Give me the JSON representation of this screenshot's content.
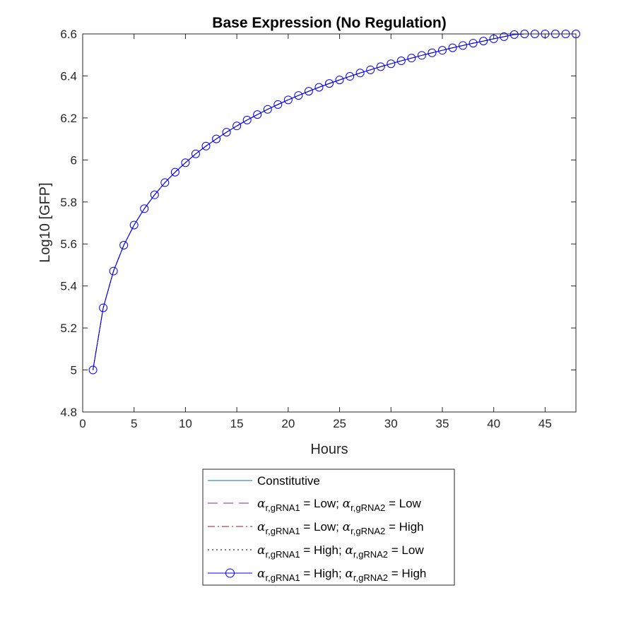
{
  "chart_data": {
    "type": "line",
    "title": "Base Expression (No Regulation)",
    "xlabel": "Hours",
    "ylabel": "Log10 [GFP]",
    "xlim": [
      0,
      48
    ],
    "ylim": [
      4.8,
      6.6
    ],
    "xticks": [
      0,
      5,
      10,
      15,
      20,
      25,
      30,
      35,
      40,
      45
    ],
    "xtick_labels": [
      "0",
      "5",
      "10",
      "15",
      "20",
      "25",
      "30",
      "35",
      "40",
      "45"
    ],
    "yticks": [
      4.8,
      5,
      5.2,
      5.4,
      5.6,
      5.8,
      6,
      6.2,
      6.4,
      6.6
    ],
    "ytick_labels": [
      "4.8",
      "5",
      "5.2",
      "5.4",
      "5.6",
      "5.8",
      "6",
      "6.2",
      "6.4",
      "6.6"
    ],
    "grid": false,
    "legend_position": "bottom-outside",
    "x": [
      1,
      2,
      3,
      4,
      5,
      6,
      7,
      8,
      9,
      10,
      11,
      12,
      13,
      14,
      15,
      16,
      17,
      18,
      19,
      20,
      21,
      22,
      23,
      24,
      25,
      26,
      27,
      28,
      29,
      30,
      31,
      32,
      33,
      34,
      35,
      36,
      37,
      38,
      39,
      40,
      41,
      42,
      43,
      44,
      45,
      46,
      47,
      48
    ],
    "series": [
      {
        "name": "Constitutive",
        "color": "#0072BD",
        "style": "solid",
        "marker": "none",
        "values": [
          5.0,
          5.296,
          5.471,
          5.594,
          5.69,
          5.768,
          5.834,
          5.892,
          5.942,
          5.987,
          6.029,
          6.066,
          6.1,
          6.132,
          6.162,
          6.19,
          6.216,
          6.241,
          6.264,
          6.286,
          6.307,
          6.327,
          6.346,
          6.364,
          6.381,
          6.398,
          6.414,
          6.429,
          6.444,
          6.458,
          6.472,
          6.485,
          6.498,
          6.51,
          6.522,
          6.534,
          6.545,
          6.556,
          6.566,
          6.577,
          6.587,
          6.597,
          6.606,
          6.615,
          6.624,
          6.633,
          6.642,
          6.65
        ]
      },
      {
        "name_parts": {
          "a": "r,gRNA1",
          "b": " = Low; ",
          "c": "r,gRNA2",
          "d": " = Low"
        },
        "color": "#7E2F8E",
        "style": "dashed",
        "marker": "none",
        "values": [
          5.0,
          5.296,
          5.471,
          5.594,
          5.69,
          5.768,
          5.834,
          5.892,
          5.942,
          5.987,
          6.029,
          6.066,
          6.1,
          6.132,
          6.162,
          6.19,
          6.216,
          6.241,
          6.264,
          6.286,
          6.307,
          6.327,
          6.346,
          6.364,
          6.381,
          6.398,
          6.414,
          6.429,
          6.444,
          6.458,
          6.472,
          6.485,
          6.498,
          6.51,
          6.522,
          6.534,
          6.545,
          6.556,
          6.566,
          6.577,
          6.587,
          6.597,
          6.606,
          6.615,
          6.624,
          6.633,
          6.642,
          6.65
        ]
      },
      {
        "name_parts": {
          "a": "r,gRNA1",
          "b": " = Low; ",
          "c": "r,gRNA2",
          "d": " = High"
        },
        "color": "#A2142F",
        "style": "dashdot",
        "marker": "none",
        "values": [
          5.0,
          5.296,
          5.471,
          5.594,
          5.69,
          5.768,
          5.834,
          5.892,
          5.942,
          5.987,
          6.029,
          6.066,
          6.1,
          6.132,
          6.162,
          6.19,
          6.216,
          6.241,
          6.264,
          6.286,
          6.307,
          6.327,
          6.346,
          6.364,
          6.381,
          6.398,
          6.414,
          6.429,
          6.444,
          6.458,
          6.472,
          6.485,
          6.498,
          6.51,
          6.522,
          6.534,
          6.545,
          6.556,
          6.566,
          6.577,
          6.587,
          6.597,
          6.606,
          6.615,
          6.624,
          6.633,
          6.642,
          6.65
        ]
      },
      {
        "name_parts": {
          "a": "r,gRNA1",
          "b": " = High; ",
          "c": "r,gRNA2",
          "d": " = Low"
        },
        "color": "#000000",
        "style": "dotted",
        "marker": "none",
        "values": [
          5.0,
          5.296,
          5.471,
          5.594,
          5.69,
          5.768,
          5.834,
          5.892,
          5.942,
          5.987,
          6.029,
          6.066,
          6.1,
          6.132,
          6.162,
          6.19,
          6.216,
          6.241,
          6.264,
          6.286,
          6.307,
          6.327,
          6.346,
          6.364,
          6.381,
          6.398,
          6.414,
          6.429,
          6.444,
          6.458,
          6.472,
          6.485,
          6.498,
          6.51,
          6.522,
          6.534,
          6.545,
          6.556,
          6.566,
          6.577,
          6.587,
          6.597,
          6.606,
          6.615,
          6.624,
          6.633,
          6.642,
          6.65
        ]
      },
      {
        "name_parts": {
          "a": "r,gRNA1",
          "b": " = High; ",
          "c": "r,gRNA2",
          "d": " = High"
        },
        "color": "#0000FF",
        "style": "solid",
        "marker": "circle",
        "values": [
          5.0,
          5.296,
          5.471,
          5.594,
          5.69,
          5.768,
          5.834,
          5.892,
          5.942,
          5.987,
          6.029,
          6.066,
          6.1,
          6.132,
          6.162,
          6.19,
          6.216,
          6.241,
          6.264,
          6.286,
          6.307,
          6.327,
          6.346,
          6.364,
          6.381,
          6.398,
          6.414,
          6.429,
          6.444,
          6.458,
          6.472,
          6.485,
          6.498,
          6.51,
          6.522,
          6.534,
          6.545,
          6.556,
          6.566,
          6.577,
          6.587,
          6.597,
          6.606,
          6.615,
          6.624,
          6.633,
          6.642,
          6.65
        ]
      }
    ],
    "legend_symbol": "α"
  }
}
